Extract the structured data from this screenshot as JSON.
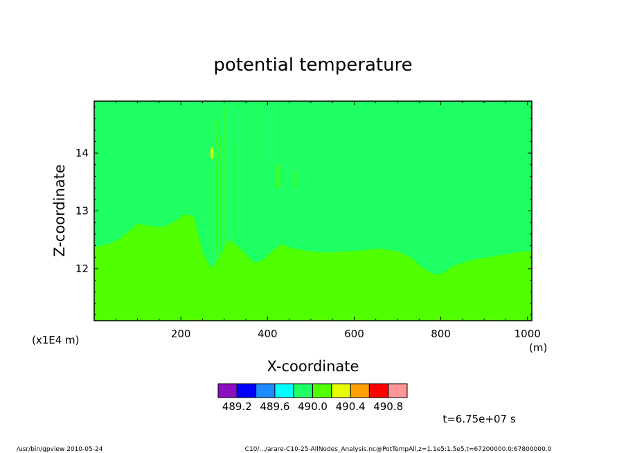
{
  "chart_data": {
    "type": "heatmap",
    "title": "potential temperature",
    "xlabel": "X-coordinate",
    "ylabel": "Z-coordinate",
    "x_unit": "(m)",
    "y_scale_note": "(x1E4 m)",
    "xlim": [
      0,
      1010
    ],
    "ylim": [
      11.1,
      14.9
    ],
    "xticks": [
      200,
      400,
      600,
      800,
      1000
    ],
    "yticks": [
      12,
      13,
      14
    ],
    "color_levels": [
      {
        "min": 489.0,
        "max": 489.2,
        "color": "#8b0fbf"
      },
      {
        "min": 489.2,
        "max": 489.4,
        "color": "#0000ff"
      },
      {
        "min": 489.4,
        "max": 489.6,
        "color": "#1e8cff"
      },
      {
        "min": 489.6,
        "max": 489.8,
        "color": "#00ffff"
      },
      {
        "min": 489.8,
        "max": 490.0,
        "color": "#1eff64"
      },
      {
        "min": 490.0,
        "max": 490.2,
        "color": "#50ff00"
      },
      {
        "min": 490.2,
        "max": 490.4,
        "color": "#e6ff00"
      },
      {
        "min": 490.4,
        "max": 490.6,
        "color": "#ffa000"
      },
      {
        "min": 490.6,
        "max": 490.8,
        "color": "#ff0000"
      },
      {
        "min": 490.8,
        "max": 491.0,
        "color": "#ff9696"
      }
    ],
    "colorbar_labels": [
      "489.2",
      "489.6",
      "490.0",
      "490.4",
      "490.8"
    ],
    "upper_region_color": "#1eff64",
    "lower_region_color": "#50ff00",
    "boundary": {
      "x": [
        0,
        30,
        60,
        100,
        130,
        160,
        190,
        210,
        230,
        250,
        270,
        290,
        310,
        330,
        350,
        370,
        390,
        410,
        430,
        460,
        500,
        540,
        580,
        620,
        660,
        700,
        730,
        760,
        780,
        800,
        830,
        870,
        910,
        950,
        990,
        1010
      ],
      "z": [
        12.38,
        12.42,
        12.52,
        12.78,
        12.74,
        12.72,
        12.84,
        12.95,
        12.9,
        12.3,
        12.0,
        12.2,
        12.5,
        12.4,
        12.25,
        12.1,
        12.15,
        12.3,
        12.42,
        12.35,
        12.3,
        12.28,
        12.3,
        12.32,
        12.35,
        12.3,
        12.2,
        12.0,
        11.92,
        11.9,
        12.05,
        12.15,
        12.2,
        12.25,
        12.3,
        12.3
      ]
    },
    "time_label": "t=6.75e+07 s"
  },
  "footer": {
    "program": "/usr/bin/gpview   2010-05-24",
    "source": "C10/.../arare-C10-25-AllNodes_Analysis.nc@PotTempAll,z=1.1e5:1.5e5,t=67200000.0:67800000.0"
  }
}
